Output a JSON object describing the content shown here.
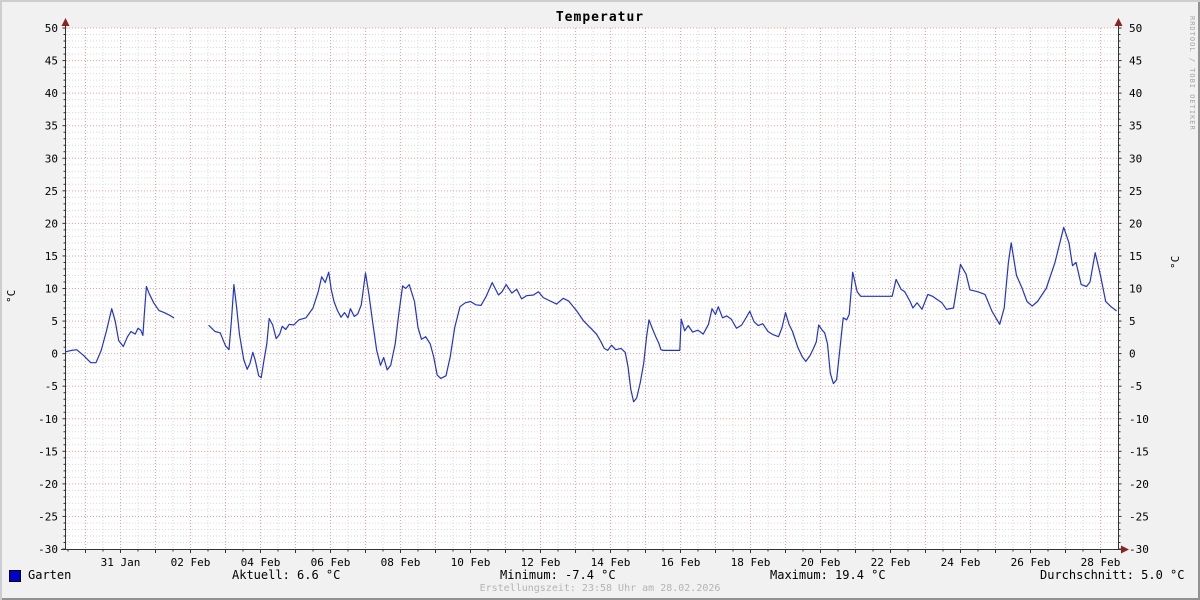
{
  "title": "Temperatur",
  "watermark": "RRDTOOL / TOBI OETIKER",
  "y_axis_unit": "°C",
  "legend": {
    "label": "Garten",
    "color": "#0000cc"
  },
  "stats": {
    "aktuell": "Aktuell: 6.6 °C",
    "minimum": "Minimum: -7.4 °C",
    "maximum": "Maximum: 19.4 °C",
    "durchschnitt": "Durchschnitt: 5.0 °C"
  },
  "footer": "Erstellungszeit: 23:58 Uhr am 28.02.2026",
  "colors": {
    "background": "#f1f1f1",
    "canvas": "#ffffff",
    "bevel_light": "#cdcdcd",
    "bevel_dark": "#929292",
    "axis": "#333333",
    "arrow": "#8b2323",
    "grid_major": "#f0a0a0",
    "grid_minor": "#d8d8d8",
    "line": "#2233cc",
    "footer_text": "#b4b4b4",
    "watermark_text": "#a6a6a6"
  },
  "chart_data": {
    "type": "line",
    "title": "Temperatur",
    "ylabel": "°C",
    "ylim": [
      -30,
      50
    ],
    "y_tick_step": 5,
    "grid": "dotted, red major every 5 °C / 1 day, gray minor every 1 °C / 12 h",
    "legend_position": "bottom-left",
    "x_axis_note": "day 0 = 31 Jan 00:00, plot spans day -1.557 to day 28.5 (29 Jan – 28 Feb)",
    "x_range_days": [
      -1.557,
      28.5
    ],
    "x_tick_days": [
      0,
      2,
      4,
      6,
      8,
      10,
      12,
      14,
      16,
      18,
      20,
      22,
      24,
      26,
      28
    ],
    "x_tick_labels": [
      "31 Jan",
      "02 Feb",
      "04 Feb",
      "06 Feb",
      "08 Feb",
      "10 Feb",
      "12 Feb",
      "14 Feb",
      "16 Feb",
      "18 Feb",
      "20 Feb",
      "22 Feb",
      "24 Feb",
      "26 Feb",
      "28 Feb"
    ],
    "summary": {
      "current": 6.6,
      "min": -7.4,
      "max": 19.4,
      "avg": 5.0
    },
    "series": [
      {
        "name": "Garten",
        "color": "#2233cc",
        "points": [
          [
            -1.56,
            0.3
          ],
          [
            -1.4,
            0.5
          ],
          [
            -1.25,
            0.6
          ],
          [
            -1.05,
            -0.3
          ],
          [
            -0.85,
            -1.4
          ],
          [
            -0.7,
            -1.4
          ],
          [
            -0.55,
            0.5
          ],
          [
            -0.4,
            3.5
          ],
          [
            -0.25,
            6.9
          ],
          [
            -0.15,
            5.0
          ],
          [
            -0.05,
            2.0
          ],
          [
            0.08,
            1.1
          ],
          [
            0.2,
            2.6
          ],
          [
            0.3,
            3.4
          ],
          [
            0.42,
            3.0
          ],
          [
            0.5,
            3.9
          ],
          [
            0.58,
            3.6
          ],
          [
            0.64,
            2.8
          ],
          [
            0.68,
            6.0
          ],
          [
            0.74,
            10.3
          ],
          [
            0.82,
            9.2
          ],
          [
            0.95,
            7.8
          ],
          [
            1.1,
            6.6
          ],
          [
            1.25,
            6.3
          ],
          [
            1.4,
            5.9
          ],
          [
            1.52,
            5.5
          ],
          [
            1.9,
            null
          ],
          [
            2.53,
            4.3
          ],
          [
            2.7,
            3.4
          ],
          [
            2.85,
            3.2
          ],
          [
            3.0,
            1.2
          ],
          [
            3.1,
            0.6
          ],
          [
            3.17,
            5.0
          ],
          [
            3.24,
            10.6
          ],
          [
            3.32,
            7.0
          ],
          [
            3.4,
            2.9
          ],
          [
            3.52,
            -0.9
          ],
          [
            3.62,
            -2.4
          ],
          [
            3.7,
            -1.5
          ],
          [
            3.78,
            0.2
          ],
          [
            3.85,
            -1.0
          ],
          [
            3.95,
            -3.4
          ],
          [
            4.02,
            -3.7
          ],
          [
            4.1,
            -1.0
          ],
          [
            4.18,
            1.5
          ],
          [
            4.25,
            5.4
          ],
          [
            4.35,
            4.4
          ],
          [
            4.45,
            2.3
          ],
          [
            4.55,
            3.0
          ],
          [
            4.62,
            4.2
          ],
          [
            4.72,
            3.7
          ],
          [
            4.82,
            4.5
          ],
          [
            4.95,
            4.4
          ],
          [
            5.1,
            5.2
          ],
          [
            5.3,
            5.5
          ],
          [
            5.5,
            7.0
          ],
          [
            5.65,
            9.5
          ],
          [
            5.75,
            11.8
          ],
          [
            5.85,
            10.9
          ],
          [
            5.95,
            12.5
          ],
          [
            6.02,
            9.9
          ],
          [
            6.1,
            8.0
          ],
          [
            6.2,
            6.6
          ],
          [
            6.3,
            5.6
          ],
          [
            6.4,
            6.3
          ],
          [
            6.5,
            5.5
          ],
          [
            6.57,
            6.9
          ],
          [
            6.68,
            5.7
          ],
          [
            6.78,
            6.1
          ],
          [
            6.88,
            7.5
          ],
          [
            7.0,
            12.4
          ],
          [
            7.1,
            9.0
          ],
          [
            7.2,
            5.0
          ],
          [
            7.32,
            0.5
          ],
          [
            7.43,
            -1.8
          ],
          [
            7.52,
            -0.6
          ],
          [
            7.62,
            -2.5
          ],
          [
            7.72,
            -1.8
          ],
          [
            7.85,
            1.5
          ],
          [
            7.95,
            6.0
          ],
          [
            8.06,
            10.4
          ],
          [
            8.15,
            10.0
          ],
          [
            8.25,
            10.6
          ],
          [
            8.4,
            8.0
          ],
          [
            8.5,
            4.0
          ],
          [
            8.6,
            2.2
          ],
          [
            8.72,
            2.6
          ],
          [
            8.85,
            1.5
          ],
          [
            8.95,
            -0.5
          ],
          [
            9.05,
            -3.3
          ],
          [
            9.15,
            -3.8
          ],
          [
            9.3,
            -3.4
          ],
          [
            9.42,
            -0.5
          ],
          [
            9.55,
            4.0
          ],
          [
            9.7,
            7.2
          ],
          [
            9.85,
            7.8
          ],
          [
            10.0,
            8.0
          ],
          [
            10.15,
            7.5
          ],
          [
            10.3,
            7.4
          ],
          [
            10.45,
            8.8
          ],
          [
            10.62,
            10.9
          ],
          [
            10.8,
            9.0
          ],
          [
            10.9,
            9.5
          ],
          [
            11.02,
            10.6
          ],
          [
            11.18,
            9.3
          ],
          [
            11.32,
            9.9
          ],
          [
            11.46,
            8.4
          ],
          [
            11.6,
            8.9
          ],
          [
            11.8,
            9.0
          ],
          [
            11.94,
            9.5
          ],
          [
            12.08,
            8.6
          ],
          [
            12.27,
            8.1
          ],
          [
            12.46,
            7.6
          ],
          [
            12.65,
            8.5
          ],
          [
            12.8,
            8.1
          ],
          [
            13.03,
            6.6
          ],
          [
            13.22,
            5.1
          ],
          [
            13.4,
            4.1
          ],
          [
            13.6,
            3.0
          ],
          [
            13.72,
            1.9
          ],
          [
            13.82,
            0.8
          ],
          [
            13.92,
            0.5
          ],
          [
            14.03,
            1.3
          ],
          [
            14.15,
            0.6
          ],
          [
            14.3,
            0.8
          ],
          [
            14.42,
            0.2
          ],
          [
            14.5,
            -2.0
          ],
          [
            14.58,
            -5.5
          ],
          [
            14.66,
            -7.4
          ],
          [
            14.75,
            -6.8
          ],
          [
            14.85,
            -4.5
          ],
          [
            14.95,
            -1.5
          ],
          [
            15.03,
            2.5
          ],
          [
            15.1,
            5.2
          ],
          [
            15.2,
            3.8
          ],
          [
            15.3,
            2.5
          ],
          [
            15.38,
            1.6
          ],
          [
            15.44,
            0.6
          ],
          [
            15.5,
            0.5
          ],
          [
            15.98,
            0.5
          ],
          [
            16.02,
            5.3
          ],
          [
            16.12,
            3.5
          ],
          [
            16.22,
            4.3
          ],
          [
            16.35,
            3.3
          ],
          [
            16.5,
            3.6
          ],
          [
            16.65,
            3.0
          ],
          [
            16.8,
            4.5
          ],
          [
            16.9,
            6.9
          ],
          [
            17.0,
            6.0
          ],
          [
            17.08,
            7.2
          ],
          [
            17.2,
            5.5
          ],
          [
            17.32,
            5.8
          ],
          [
            17.45,
            5.3
          ],
          [
            17.6,
            3.9
          ],
          [
            17.75,
            4.4
          ],
          [
            17.86,
            5.4
          ],
          [
            17.98,
            6.5
          ],
          [
            18.1,
            4.9
          ],
          [
            18.22,
            4.3
          ],
          [
            18.35,
            4.6
          ],
          [
            18.5,
            3.4
          ],
          [
            18.65,
            2.9
          ],
          [
            18.8,
            2.6
          ],
          [
            18.9,
            4.0
          ],
          [
            19.0,
            6.3
          ],
          [
            19.1,
            4.5
          ],
          [
            19.2,
            3.4
          ],
          [
            19.35,
            1.0
          ],
          [
            19.48,
            -0.5
          ],
          [
            19.58,
            -1.2
          ],
          [
            19.7,
            -0.3
          ],
          [
            19.8,
            0.8
          ],
          [
            19.88,
            1.8
          ],
          [
            19.95,
            4.4
          ],
          [
            20.05,
            3.6
          ],
          [
            20.12,
            3.2
          ],
          [
            20.2,
            1.5
          ],
          [
            20.28,
            -3.0
          ],
          [
            20.37,
            -4.6
          ],
          [
            20.46,
            -4.0
          ],
          [
            20.58,
            2.0
          ],
          [
            20.65,
            5.5
          ],
          [
            20.75,
            5.2
          ],
          [
            20.82,
            6.0
          ],
          [
            20.92,
            12.5
          ],
          [
            21.05,
            9.5
          ],
          [
            21.15,
            8.8
          ],
          [
            22.05,
            8.8
          ],
          [
            22.16,
            11.4
          ],
          [
            22.3,
            9.9
          ],
          [
            22.41,
            9.5
          ],
          [
            22.56,
            8.0
          ],
          [
            22.64,
            7.0
          ],
          [
            22.76,
            7.8
          ],
          [
            22.9,
            6.8
          ],
          [
            23.07,
            9.1
          ],
          [
            23.2,
            8.8
          ],
          [
            23.47,
            7.8
          ],
          [
            23.6,
            6.8
          ],
          [
            23.8,
            7.0
          ],
          [
            24.0,
            13.7
          ],
          [
            24.16,
            12.2
          ],
          [
            24.27,
            9.8
          ],
          [
            24.5,
            9.5
          ],
          [
            24.7,
            9.1
          ],
          [
            24.9,
            6.5
          ],
          [
            25.12,
            4.5
          ],
          [
            25.25,
            7.0
          ],
          [
            25.37,
            14.0
          ],
          [
            25.45,
            17.0
          ],
          [
            25.6,
            12.0
          ],
          [
            25.75,
            10.2
          ],
          [
            25.9,
            8.0
          ],
          [
            26.05,
            7.3
          ],
          [
            26.2,
            8.0
          ],
          [
            26.45,
            10.0
          ],
          [
            26.7,
            14.0
          ],
          [
            26.95,
            19.4
          ],
          [
            27.1,
            17.0
          ],
          [
            27.2,
            13.5
          ],
          [
            27.3,
            14.0
          ],
          [
            27.45,
            10.6
          ],
          [
            27.6,
            10.3
          ],
          [
            27.7,
            11.0
          ],
          [
            27.85,
            15.5
          ],
          [
            28.0,
            12.0
          ],
          [
            28.15,
            8.0
          ],
          [
            28.3,
            7.2
          ],
          [
            28.45,
            6.6
          ]
        ]
      }
    ]
  }
}
